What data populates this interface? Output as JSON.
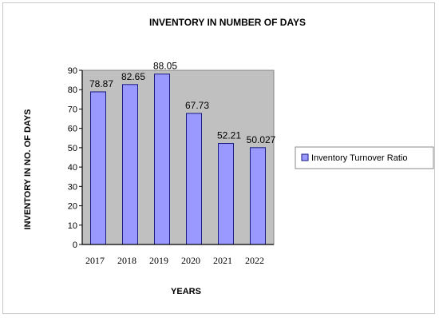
{
  "chart_data": {
    "type": "bar",
    "title": "INVENTORY IN NUMBER OF DAYS",
    "xlabel": "YEARS",
    "ylabel": "INVENTORY IN NO. OF DAYS",
    "categories": [
      "2017",
      "2018",
      "2019",
      "2020",
      "2021",
      "2022"
    ],
    "series": [
      {
        "name": "Inventory Turnover Ratio",
        "values": [
          78.87,
          82.65,
          88.05,
          67.73,
          52.21,
          50.027
        ],
        "labels": [
          "78.87",
          "82.65",
          "88.05",
          "67.73",
          "52.21",
          "50.027"
        ]
      }
    ],
    "ylim": [
      0,
      90
    ],
    "yticks": [
      "0",
      "10",
      "20",
      "30",
      "40",
      "50",
      "60",
      "70",
      "80",
      "90"
    ],
    "grid": false,
    "legend": "right",
    "colors": {
      "bar": "#9999ff",
      "bar_edge": "#1a1a80",
      "plot_background": "#c0c0c0",
      "axis": "#000000"
    }
  }
}
